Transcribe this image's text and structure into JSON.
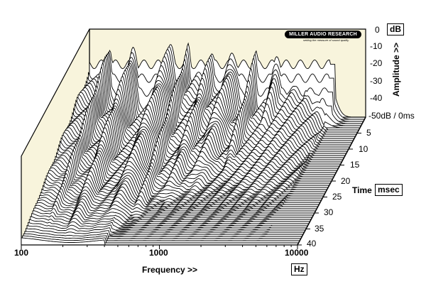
{
  "chart_data": {
    "type": "waterfall",
    "title": "",
    "xlabel": "Frequency >>",
    "x_unit": "Hz",
    "x_scale": "log",
    "x_ticks": [
      "100",
      "1000",
      "10000"
    ],
    "xlim": [
      100,
      10000
    ],
    "ylabel": "Amplitude >>",
    "y_unit": "dB",
    "y_ticks": [
      "0",
      "-10",
      "-20",
      "-30",
      "-40",
      "-50dB / 0ms"
    ],
    "ylim": [
      -50,
      0
    ],
    "zlabel": "Time",
    "z_unit": "msec",
    "z_ticks": [
      "5",
      "10",
      "15",
      "20",
      "25",
      "30",
      "35",
      "40"
    ],
    "zlim": [
      0,
      40
    ],
    "resonances_hz": [
      140,
      210,
      380,
      520,
      760,
      1100,
      1600,
      2300,
      3000,
      3800,
      4600,
      5200
    ],
    "decay_ms": [
      40,
      40,
      38,
      33,
      28,
      25,
      20,
      11,
      8,
      6,
      5,
      4
    ],
    "logo_text": "MILLER AUDIO RESEARCH",
    "logo_tagline": "setting the measure of sound quality",
    "background_color": "#f8f4dc"
  }
}
